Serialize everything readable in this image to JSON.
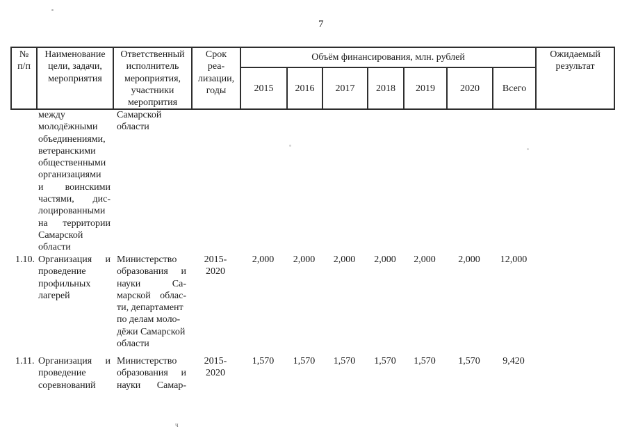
{
  "page": {
    "number": "7"
  },
  "table": {
    "header": {
      "num": [
        "№",
        "п/п"
      ],
      "name": [
        "Наименование",
        "цели, задачи,",
        "мероприятия"
      ],
      "executor": [
        "Ответственный",
        "исполнитель",
        "мероприятия,",
        "участники",
        "меропрития"
      ],
      "period": [
        "Срок",
        "реа-",
        "лизации,",
        "годы"
      ],
      "financing_title": "Объём финансирования, млн. рублей",
      "years": [
        "2015",
        "2016",
        "2017",
        "2018",
        "2019",
        "2020",
        "Всего"
      ],
      "expected_result": [
        "Ожидаемый",
        "результат"
      ]
    },
    "rows": [
      {
        "num": "",
        "name_lines": [
          "между",
          "молодёжными",
          "объединениями,",
          "ветеранскими",
          "общественными",
          "организациями",
          {
            "t": "и воинскими",
            "j": 1
          },
          {
            "t": "частями, дис-",
            "j": 1
          },
          "лоцированными",
          {
            "t": "на территории",
            "j": 1
          },
          "Самарской",
          "области"
        ],
        "executor_lines": [
          "Самарской",
          "области"
        ]
      },
      {
        "num": "1.10.",
        "name_lines": [
          {
            "t": "Организация и",
            "j": 1
          },
          "проведение",
          "профильных",
          "лагерей"
        ],
        "executor_lines": [
          "Министерство",
          {
            "t": "образования и",
            "j": 1
          },
          {
            "t": "науки Са-",
            "j": 1
          },
          {
            "t": "марской облас-",
            "j": 1
          },
          "ти, департамент",
          "по делам моло-",
          "дёжи Самарской",
          "области"
        ],
        "period_lines": [
          "2015-",
          "2020"
        ],
        "values": [
          "2,000",
          "2,000",
          "2,000",
          "2,000",
          "2,000",
          "2,000"
        ],
        "total": "12,000"
      },
      {
        "num": "1.11.",
        "name_lines": [
          {
            "t": "Организация и",
            "j": 1
          },
          "проведение",
          "соревнований"
        ],
        "executor_lines": [
          "Министерство",
          {
            "t": "образования и",
            "j": 1
          },
          {
            "t": "науки Самар-",
            "j": 1
          }
        ],
        "period_lines": [
          "2015-",
          "2020"
        ],
        "values": [
          "1,570",
          "1,570",
          "1,570",
          "1,570",
          "1,570",
          "1,570"
        ],
        "total": "9,420"
      }
    ]
  },
  "artifacts": {
    "bottom_mark": "ч"
  }
}
